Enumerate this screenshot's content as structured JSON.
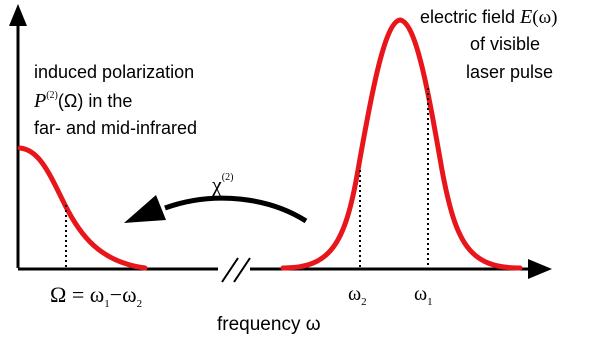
{
  "labels": {
    "left_line1": "induced polarization",
    "left_P": "P",
    "left_P_sup": "(2)",
    "left_P_arg": "(Ω) in the",
    "left_line3": "far- and mid-infrared",
    "right_line1": "electric field ",
    "right_E": "E",
    "right_E_arg": "(ω)",
    "right_line2": "of visible",
    "right_line3": "laser pulse",
    "chi": "χ",
    "chi_sup": "(2)",
    "Omega_eq": "Ω = ω",
    "Omega_sub1": "1",
    "Omega_minus": "−ω",
    "Omega_sub2": "2",
    "omega2": "ω",
    "omega2_sub": "2",
    "omega1": "ω",
    "omega1_sub": "1",
    "x_label": "frequency ω"
  },
  "colors": {
    "curve": "#e8161b",
    "axis": "#000000",
    "text": "#000000"
  }
}
